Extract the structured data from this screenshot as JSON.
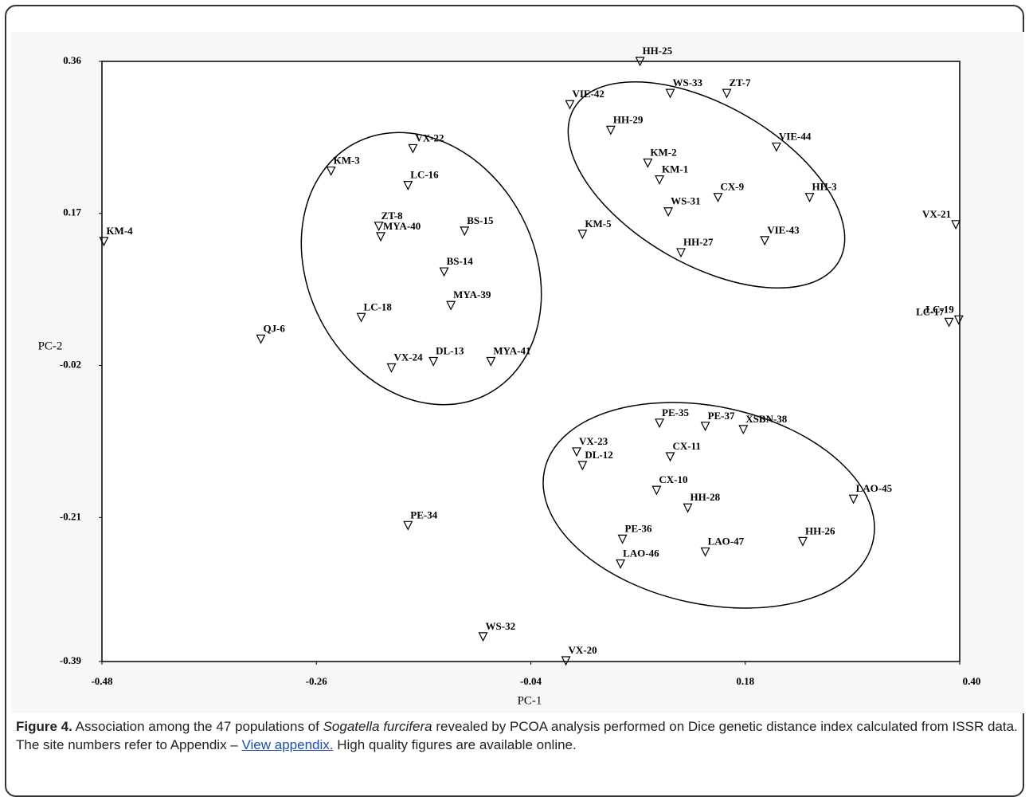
{
  "chart_data": {
    "type": "scatter",
    "xlabel": "PC-1",
    "ylabel": "PC-2",
    "xlim": [
      -0.48,
      0.4
    ],
    "xticks": [
      -0.48,
      -0.26,
      -0.04,
      0.18,
      {
        "value": 0.4,
        "label": "0.40"
      }
    ],
    "ylim": [
      -0.39,
      0.36
    ],
    "yticks": [
      0.36,
      0.17,
      -0.02,
      -0.21,
      -0.39
    ],
    "color": "#000000",
    "labels": [
      "KM-4",
      "QJ-6",
      "KM-3",
      "VX-22",
      "LC-16",
      "ZT-8",
      "MYA-40",
      "BS-15",
      "BS-14",
      "MYA-39",
      "LC-18",
      "VX-24",
      "DL-13",
      "MYA-41",
      "KM-5",
      "VIE-42",
      "HH-25",
      "WS-33",
      "ZT-7",
      "HH-29",
      "KM-2",
      "KM-1",
      "CX-9",
      "VIE-44",
      "HH-3",
      "WS-31",
      "HH-27",
      "VIE-43",
      "VX-21",
      "LC-19",
      "LC-17",
      "PE-35",
      "PE-37",
      "XSBN-38",
      "VX-23",
      "DL-12",
      "CX-11",
      "CX-10",
      "HH-28",
      "LAO-45",
      "PE-34",
      "PE-36",
      "LAO-47",
      "HH-26",
      "LAO-46",
      "WS-32",
      "VX-20"
    ],
    "x": [
      -0.478,
      -0.317,
      -0.245,
      -0.161,
      -0.166,
      -0.196,
      -0.194,
      -0.108,
      -0.129,
      -0.122,
      -0.214,
      -0.183,
      -0.14,
      -0.081,
      0.013,
      0.0,
      0.072,
      0.103,
      0.161,
      0.042,
      0.08,
      0.092,
      0.152,
      0.212,
      0.246,
      0.101,
      0.114,
      0.2,
      0.396,
      0.399,
      0.389,
      0.092,
      0.139,
      0.178,
      0.007,
      0.013,
      0.103,
      0.089,
      0.121,
      0.291,
      -0.166,
      0.054,
      0.139,
      0.239,
      0.052,
      -0.089,
      -0.004
    ],
    "values": [
      0.135,
      0.013,
      0.223,
      0.251,
      0.205,
      0.154,
      0.141,
      0.148,
      0.097,
      0.055,
      0.04,
      -0.023,
      -0.015,
      -0.015,
      0.144,
      0.306,
      0.36,
      0.32,
      0.32,
      0.274,
      0.233,
      0.212,
      0.19,
      0.253,
      0.19,
      0.172,
      0.121,
      0.136,
      0.156,
      0.037,
      0.034,
      -0.092,
      -0.096,
      -0.1,
      -0.128,
      -0.145,
      -0.134,
      -0.176,
      -0.198,
      -0.187,
      -0.22,
      -0.237,
      -0.253,
      -0.24,
      -0.268,
      -0.359,
      -0.389
    ]
  },
  "caption": {
    "label": "Figure 4.",
    "text1": " Association among the 47 populations of ",
    "species": "Sogatella furcifera",
    "text2": " revealed by PCOA analysis performed on Dice genetic distance index calculated from ISSR data. The site numbers refer to Appendix – ",
    "link": "View appendix.",
    "text3": " High quality figures are available online."
  }
}
